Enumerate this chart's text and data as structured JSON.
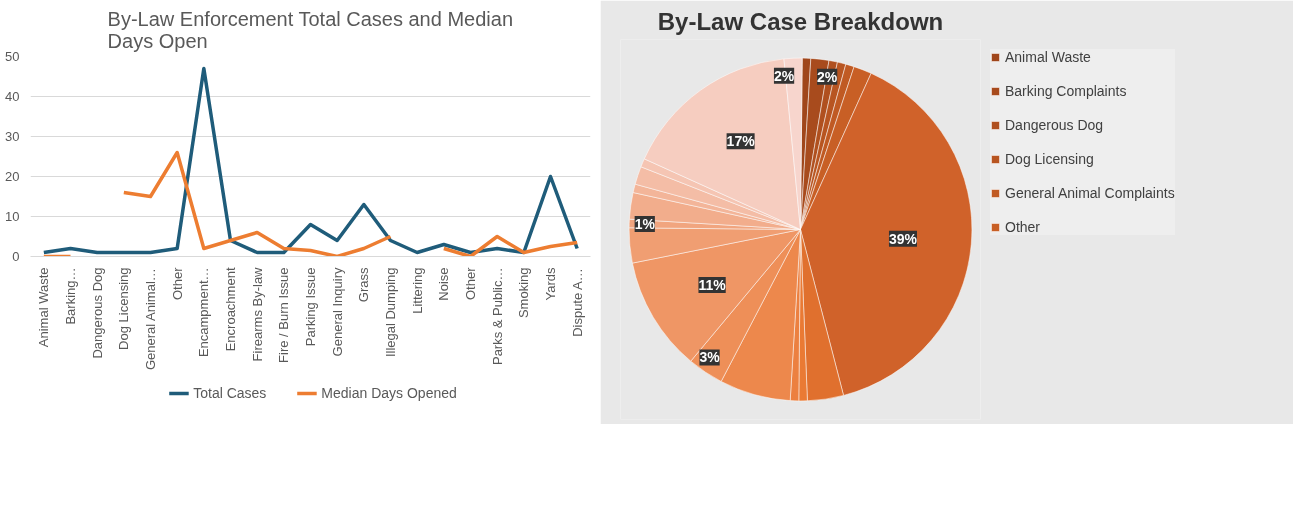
{
  "chart_data": [
    {
      "type": "line",
      "title": "By-Law Enforcement Total Cases and Median Days Open",
      "categories": [
        "Animal Waste",
        "Barking…",
        "Dangerous Dog",
        "Dog Licensing",
        "General Animal…",
        "Other",
        "Encampment…",
        "Encroachment",
        "Firearms By-law",
        "Fire / Burn Issue",
        "Parking Issue",
        "General Inquiry",
        "Grass",
        "Illegal Dumping",
        "Littering",
        "Noise",
        "Other",
        "Parks & Public…",
        "Smoking",
        "Yards",
        "Dispute A…"
      ],
      "series": [
        {
          "name": "Total Cases",
          "color": "#1f5c7a",
          "values": [
            1,
            2,
            1,
            1,
            1,
            2,
            47,
            4,
            1,
            1,
            8,
            4,
            13,
            4,
            1,
            3,
            1,
            2,
            1,
            20,
            2
          ]
        },
        {
          "name": "Median Days Opened",
          "color": "#ed7d31",
          "values": [
            0,
            0,
            null,
            16,
            15,
            26,
            2,
            4,
            6,
            2,
            1.5,
            0,
            2,
            5,
            null,
            2,
            0,
            5,
            1,
            2.5,
            3.5
          ]
        }
      ],
      "ylim": [
        0,
        50
      ],
      "yticks": [
        0,
        10,
        20,
        30,
        40,
        50
      ],
      "grid": "y",
      "legend": "bottom",
      "line_style": "solid",
      "marker": "none"
    },
    {
      "type": "pie",
      "title": "By-Law Case Breakdown",
      "categories": [
        "Animal Waste",
        "Barking Complaints",
        "Dangerous Dog",
        "Dog Licensing",
        "General Animal Complaints",
        "Other",
        null,
        null,
        null,
        null,
        null,
        null,
        null,
        null,
        null,
        null,
        null,
        null,
        null,
        null,
        null
      ],
      "values": [
        0.8,
        1.7,
        0.8,
        0.8,
        0.8,
        1.7,
        39.2,
        3.4,
        0.8,
        0.8,
        6.7,
        3.4,
        10.8,
        3.3,
        0.8,
        2.5,
        0.8,
        1.7,
        0.8,
        16.7,
        1.7
      ],
      "colors": [
        "#a0461b",
        "#a84b1d",
        "#b0501f",
        "#b85521",
        "#c05a23",
        "#c85f25",
        "#d0622a",
        "#e0702e",
        "#ea7a34",
        "#ec8040",
        "#ed884c",
        "#ee8f58",
        "#ef9665",
        "#f09e72",
        "#f1a57f",
        "#f2ad8c",
        "#f3b599",
        "#f4bda6",
        "#f5c5b3",
        "#f6cdc0",
        "#f7d5cd"
      ],
      "value_labels": [
        null,
        "2%",
        null,
        null,
        null,
        null,
        "39%",
        null,
        null,
        null,
        null,
        "3%",
        "11%",
        null,
        "1%",
        null,
        null,
        null,
        null,
        "17%",
        "2%"
      ],
      "legend": "right"
    }
  ]
}
